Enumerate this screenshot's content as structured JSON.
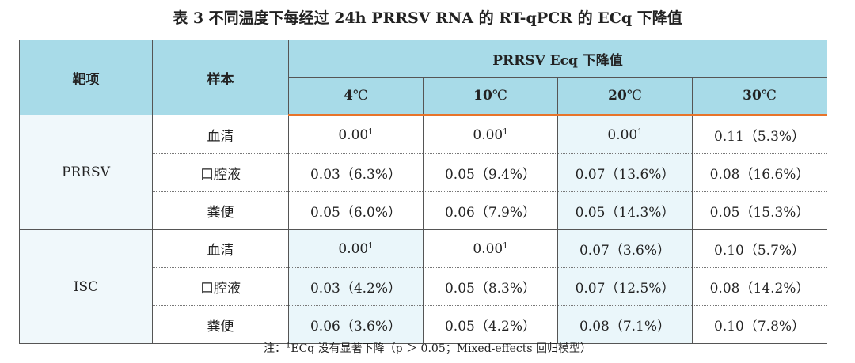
{
  "title": "表 3 不同温度下每经过 24h PRRSV RNA 的 RT-qPCR 的 ECq 下降值",
  "header": {
    "target": "靶项",
    "sample": "样本",
    "group": "PRRSV Ecq 下降值",
    "temps": [
      {
        "num": "4",
        "unit": "℃"
      },
      {
        "num": "10",
        "unit": "℃"
      },
      {
        "num": "20",
        "unit": "℃"
      },
      {
        "num": "30",
        "unit": "℃"
      }
    ]
  },
  "groups": [
    {
      "target": "PRRSV",
      "rows": [
        {
          "sample": "血清",
          "cells": [
            {
              "v": "0.00",
              "sup": "1"
            },
            {
              "v": "0.00",
              "sup": "1"
            },
            {
              "v": "0.00",
              "sup": "1"
            },
            {
              "v": "0.11（5.3%）"
            }
          ]
        },
        {
          "sample": "口腔液",
          "cells": [
            {
              "v": "0.03（6.3%）"
            },
            {
              "v": "0.05（9.4%）"
            },
            {
              "v": "0.07（13.6%）"
            },
            {
              "v": "0.08（16.6%）"
            }
          ]
        },
        {
          "sample": "粪便",
          "cells": [
            {
              "v": "0.05（6.0%）"
            },
            {
              "v": "0.06（7.9%）"
            },
            {
              "v": "0.05（14.3%）"
            },
            {
              "v": "0.05（15.3%）"
            }
          ]
        }
      ]
    },
    {
      "target": "ISC",
      "rows": [
        {
          "sample": "血清",
          "cells": [
            {
              "v": "0.00",
              "sup": "1"
            },
            {
              "v": "0.00",
              "sup": "1"
            },
            {
              "v": "0.07（3.6%）"
            },
            {
              "v": "0.10（5.7%）"
            }
          ]
        },
        {
          "sample": "口腔液",
          "cells": [
            {
              "v": "0.03（4.2%）"
            },
            {
              "v": "0.05（8.3%）"
            },
            {
              "v": "0.07（12.5%）"
            },
            {
              "v": "0.08（14.2%）"
            }
          ]
        },
        {
          "sample": "粪便",
          "cells": [
            {
              "v": "0.06（3.6%）"
            },
            {
              "v": "0.05（4.2%）"
            },
            {
              "v": "0.08（7.1%）"
            },
            {
              "v": "0.10（7.8%）"
            }
          ]
        }
      ]
    }
  ],
  "note": {
    "prefix": "注：",
    "sup": "1",
    "text": "ECq 没有显著下降（p ＞ 0.05；Mixed-effects 回归模型）"
  }
}
